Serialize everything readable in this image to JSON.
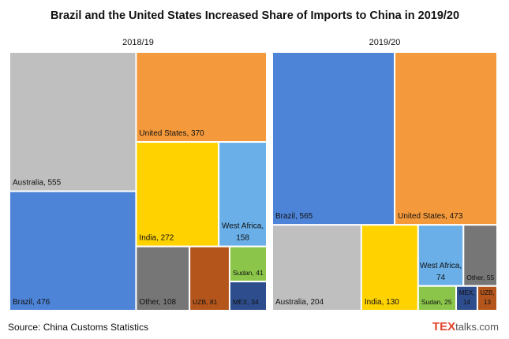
{
  "title": "Brazil and the United States Increased Share of Imports to China in 2019/20",
  "source": "Source: China Customs Statistics",
  "logo": {
    "mark": "TEX",
    "rest": "talks.com"
  },
  "chart_data": [
    {
      "type": "treemap",
      "title": "2018/19",
      "values": [
        555,
        476,
        370,
        272,
        158,
        108,
        81,
        41,
        34
      ],
      "value_labels": [
        "Australia, 555",
        "Brazil, 476",
        "United States, 370",
        "India, 272",
        "West Africa, 158",
        "Other, 108",
        "UZB, 81",
        "Sudan, 41",
        "MEX, 34"
      ],
      "colors": [
        "#bfbfbf",
        "#4e84d8",
        "#f59a3c",
        "#ffd200",
        "#6aafe8",
        "#767676",
        "#b4561c",
        "#8bc54a",
        "#2e4d8c"
      ]
    },
    {
      "type": "treemap",
      "title": "2019/20",
      "values": [
        565,
        473,
        204,
        130,
        74,
        55,
        25,
        14,
        13
      ],
      "value_labels": [
        "Brazil, 565",
        "United States, 473",
        "Australia, 204",
        "India, 130",
        "West Africa, 74",
        "Other, 55",
        "Sudan, 25",
        "MEX, 14",
        "UZB, 13"
      ],
      "colors": [
        "#4e84d8",
        "#f59a3c",
        "#bfbfbf",
        "#ffd200",
        "#6aafe8",
        "#767676",
        "#8bc54a",
        "#2e4d8c",
        "#b4561c"
      ]
    }
  ]
}
